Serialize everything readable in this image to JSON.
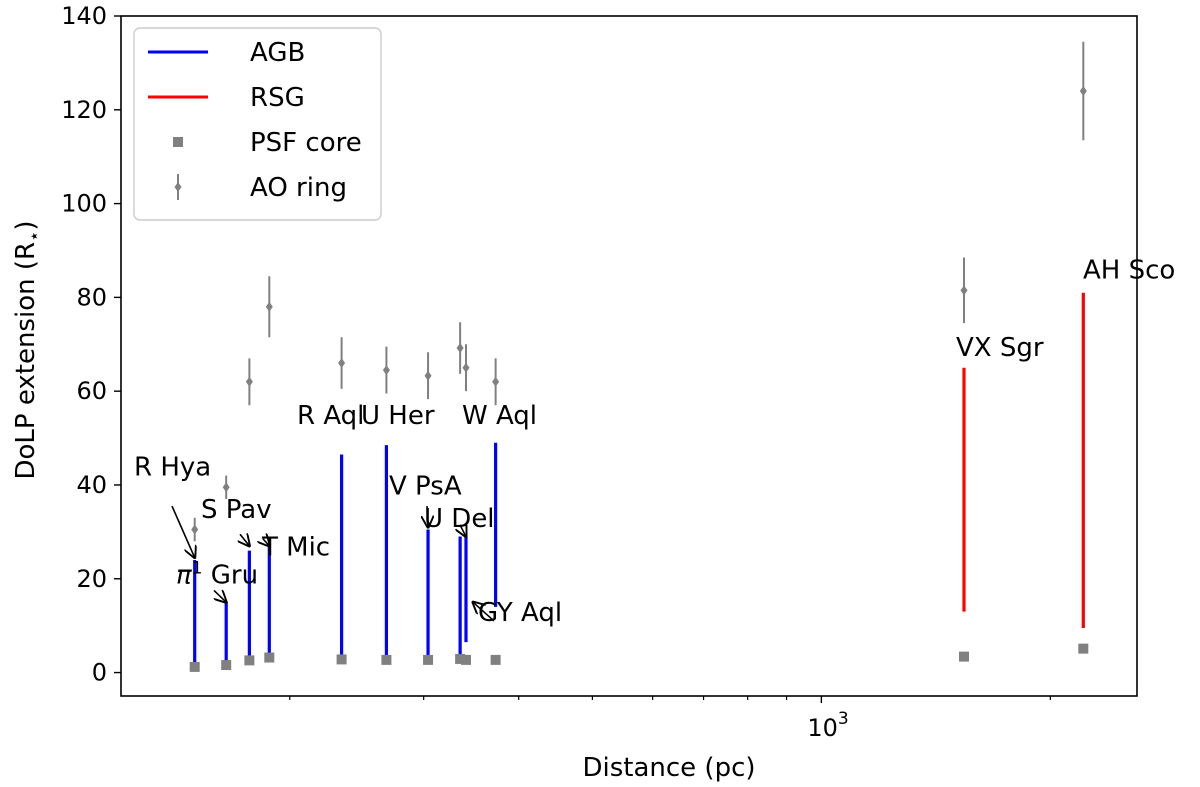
{
  "chart_data": {
    "type": "scatter",
    "xscale": "log",
    "xlabel": "Distance (pc)",
    "ylabel": "DoLP extension (R",
    "ylabel_star": "⋆",
    "ylabel_close": ")",
    "xlim": [
      120,
      2600
    ],
    "ylim": [
      -5,
      140
    ],
    "xticks": [
      {
        "value": 1000,
        "base": "10",
        "exp": "3"
      }
    ],
    "yticks": [
      0,
      20,
      40,
      60,
      80,
      100,
      120,
      140
    ],
    "colors": {
      "AGB": "#0000ff",
      "RSG": "#ff0000",
      "markers": "#808080"
    },
    "legend": {
      "position": "top-left",
      "entries": [
        {
          "label": "AGB",
          "kind": "line",
          "color": "#0000ff"
        },
        {
          "label": "RSG",
          "kind": "line",
          "color": "#ff0000"
        },
        {
          "label": "PSF core",
          "kind": "square",
          "color": "#808080"
        },
        {
          "label": "AO ring",
          "kind": "errorbar",
          "color": "#808080"
        }
      ]
    },
    "extension_lines": [
      {
        "x": 150,
        "low": 1.5,
        "high": 24,
        "type": "AGB"
      },
      {
        "x": 165,
        "low": 1.5,
        "high": 15,
        "type": "AGB"
      },
      {
        "x": 177,
        "low": 2.5,
        "high": 26,
        "type": "AGB"
      },
      {
        "x": 188,
        "low": 3,
        "high": 27,
        "type": "AGB"
      },
      {
        "x": 234,
        "low": 2.5,
        "high": 46.5,
        "type": "AGB"
      },
      {
        "x": 268,
        "low": 2.5,
        "high": 48.5,
        "type": "AGB"
      },
      {
        "x": 304,
        "low": 2.5,
        "high": 30.5,
        "type": "AGB"
      },
      {
        "x": 335,
        "low": 3,
        "high": 29,
        "type": "AGB"
      },
      {
        "x": 341,
        "low": 6.5,
        "high": 29,
        "type": "AGB"
      },
      {
        "x": 373,
        "low": 14,
        "high": 49,
        "type": "AGB"
      },
      {
        "x": 1540,
        "low": 13,
        "high": 65,
        "type": "RSG"
      },
      {
        "x": 2210,
        "low": 9.5,
        "high": 81,
        "type": "RSG"
      }
    ],
    "psf_core": [
      {
        "x": 150,
        "y": 1.2
      },
      {
        "x": 165,
        "y": 1.6
      },
      {
        "x": 177,
        "y": 2.6
      },
      {
        "x": 188,
        "y": 3.2
      },
      {
        "x": 234,
        "y": 2.8
      },
      {
        "x": 268,
        "y": 2.7
      },
      {
        "x": 304,
        "y": 2.7
      },
      {
        "x": 335,
        "y": 2.9
      },
      {
        "x": 341,
        "y": 2.7
      },
      {
        "x": 373,
        "y": 2.7
      },
      {
        "x": 1540,
        "y": 3.4
      },
      {
        "x": 2210,
        "y": 5.1
      }
    ],
    "ao_ring": [
      {
        "x": 150,
        "y": 30.5,
        "err": 2.5
      },
      {
        "x": 165,
        "y": 39.5,
        "err": 2.5
      },
      {
        "x": 177,
        "y": 62,
        "err": 5
      },
      {
        "x": 188,
        "y": 78,
        "err": 6.5
      },
      {
        "x": 234,
        "y": 66,
        "err": 5.5
      },
      {
        "x": 268,
        "y": 64.5,
        "err": 5
      },
      {
        "x": 304,
        "y": 63.3,
        "err": 5
      },
      {
        "x": 335,
        "y": 69.2,
        "err": 5.5
      },
      {
        "x": 341,
        "y": 65,
        "err": 5
      },
      {
        "x": 373,
        "y": 62,
        "err": 5
      },
      {
        "x": 1540,
        "y": 81.5,
        "err": 7
      },
      {
        "x": 2210,
        "y": 124,
        "err": 10.5
      }
    ],
    "annotations": [
      {
        "text": "R Hya",
        "tx": 134,
        "ty": 42,
        "ax": 150,
        "ay": 24.5
      },
      {
        "text": "π",
        "sup": "1",
        "suffix": " Gru",
        "tx": 176,
        "ty": 19,
        "ax": 165,
        "ay": 15
      },
      {
        "text": "S Pav",
        "tx": 201,
        "ty": 33,
        "ax": 177,
        "ay": 27
      },
      {
        "text": "T Mic",
        "tx": 262,
        "ty": 25,
        "ax": 188,
        "ay": 27
      },
      {
        "text": "R Aql",
        "tx": 297,
        "ty": 53
      },
      {
        "text": "U Her",
        "tx": 361,
        "ty": 53
      },
      {
        "text": "W Aql",
        "tx": 462,
        "ty": 53
      },
      {
        "text": "V PsA",
        "tx": 389,
        "ty": 38,
        "ax": 304,
        "ay": 31
      },
      {
        "text": "U Del",
        "tx": 424,
        "ty": 31,
        "ax": 341,
        "ay": 29
      },
      {
        "text": "GY Aql",
        "tx": 478,
        "ty": 11,
        "ax": 341,
        "ay": 15
      },
      {
        "text": "VX Sgr",
        "tx": 956,
        "ty": 67.5
      },
      {
        "text": "AH Sco",
        "tx": 1083,
        "ty": 84
      }
    ]
  }
}
